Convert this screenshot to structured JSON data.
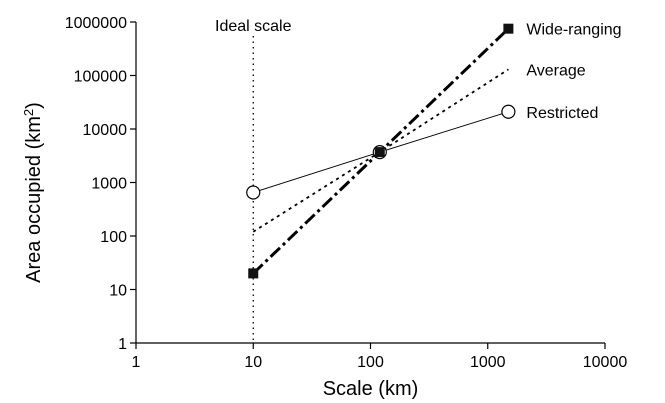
{
  "chart_data": {
    "type": "line",
    "x_scale": "log",
    "y_scale": "log",
    "xlabel": "Scale (km)",
    "ylabel_main": "Area occupied (km",
    "ylabel_sup": "2",
    "ylabel_close": ")",
    "xlim": [
      1,
      10000
    ],
    "ylim": [
      1,
      1000000
    ],
    "x_ticks": [
      1,
      10,
      100,
      1000,
      10000
    ],
    "x_tick_labels": [
      "1",
      "10",
      "100",
      "1000",
      "10000"
    ],
    "y_ticks": [
      1,
      10,
      100,
      1000,
      10000,
      100000,
      1000000
    ],
    "y_tick_labels": [
      "1",
      "10",
      "100",
      "1000",
      "10000",
      "100000",
      "1000000"
    ],
    "grid": false,
    "reference_line": {
      "label": "Ideal scale",
      "x": 10
    },
    "series": [
      {
        "name": "Wide-ranging",
        "x": [
          10,
          120,
          1500
        ],
        "y": [
          20,
          3700,
          750000
        ],
        "marker": "filled-square",
        "line": "dash-dot-thick"
      },
      {
        "name": "Average",
        "x": [
          10,
          120,
          1500
        ],
        "y": [
          120,
          3700,
          130000
        ],
        "marker": "none",
        "line": "dotted"
      },
      {
        "name": "Restricted",
        "x": [
          10,
          120,
          1500
        ],
        "y": [
          650,
          3700,
          21000
        ],
        "marker": "open-circle",
        "line": "solid-thin"
      }
    ],
    "annotations": [
      "Wide-ranging",
      "Average",
      "Restricted",
      "Ideal scale"
    ]
  }
}
